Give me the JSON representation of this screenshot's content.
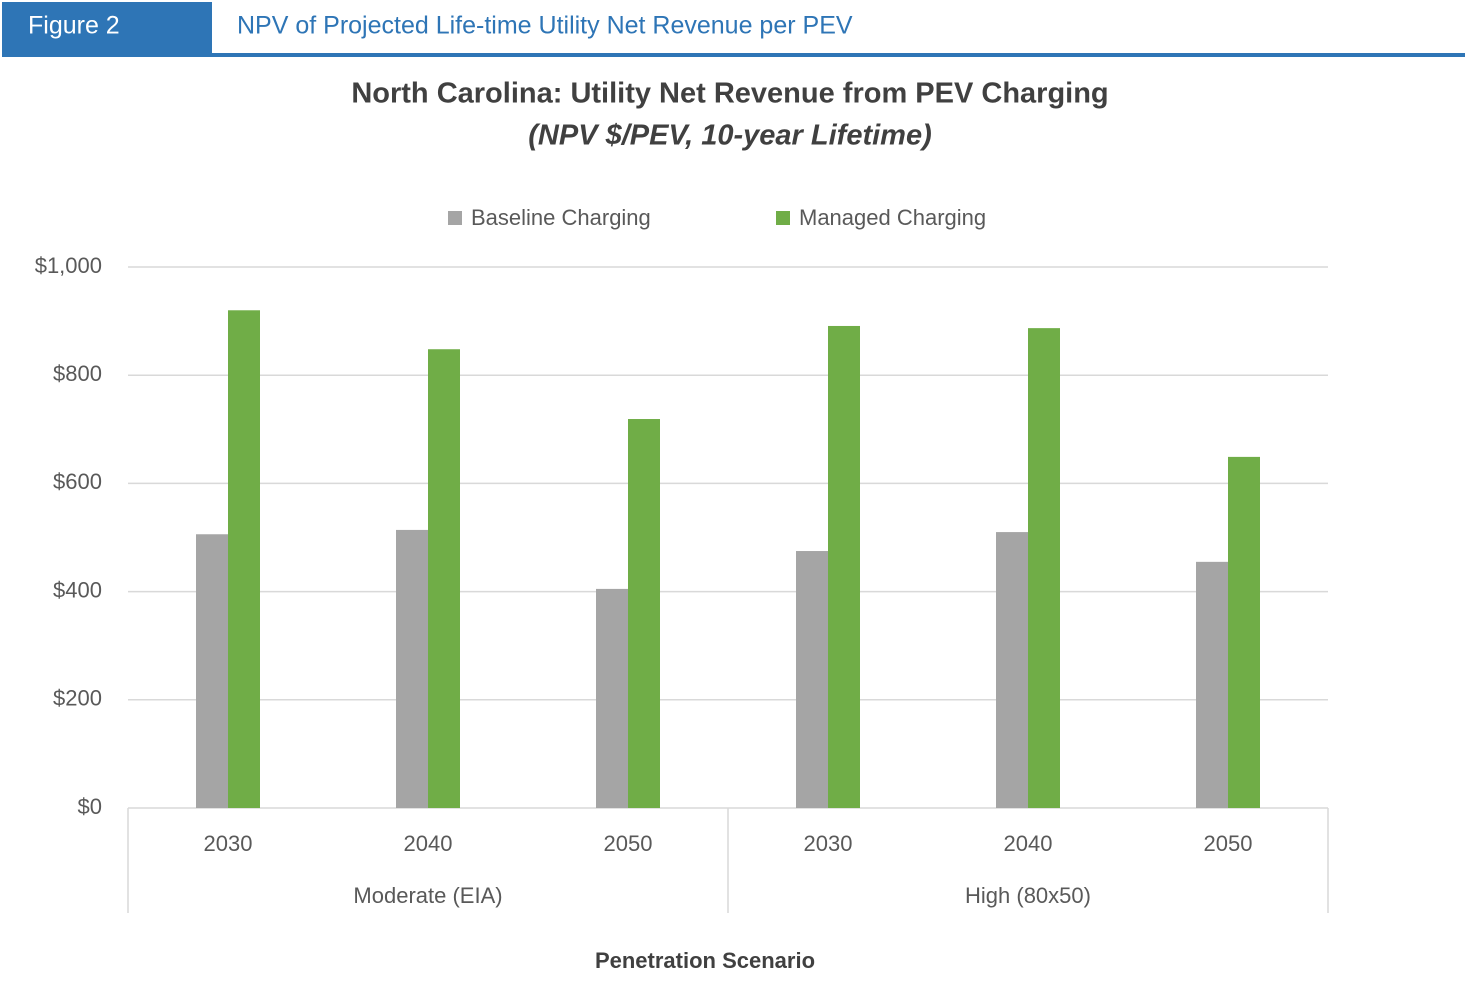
{
  "header": {
    "label": "Figure 2",
    "title": "NPV of Projected Life-time Utility Net Revenue per PEV"
  },
  "chart_data": {
    "type": "bar",
    "title": "North Carolina: Utility Net Revenue from PEV Charging",
    "subtitle": "(NPV $/PEV, 10-year Lifetime)",
    "x_label": "Penetration Scenario",
    "groups": [
      {
        "label": "Moderate (EIA)",
        "categories": [
          "2030",
          "2040",
          "2050"
        ]
      },
      {
        "label": "High (80x50)",
        "categories": [
          "2030",
          "2040",
          "2050"
        ]
      }
    ],
    "series": [
      {
        "name": "Baseline Charging",
        "color": "#a5a5a5",
        "values": [
          506,
          514,
          405,
          475,
          510,
          455
        ]
      },
      {
        "name": "Managed Charging",
        "color": "#70ad47",
        "values": [
          920,
          848,
          719,
          891,
          887,
          649
        ]
      }
    ],
    "ylim": [
      0,
      1000
    ],
    "yticks": [
      {
        "value": 0,
        "label": "$0"
      },
      {
        "value": 200,
        "label": "$200"
      },
      {
        "value": 400,
        "label": "$400"
      },
      {
        "value": 600,
        "label": "$600"
      },
      {
        "value": 800,
        "label": "$800"
      },
      {
        "value": 1000,
        "label": "$1,000"
      }
    ],
    "grid": true,
    "legend": "top"
  }
}
